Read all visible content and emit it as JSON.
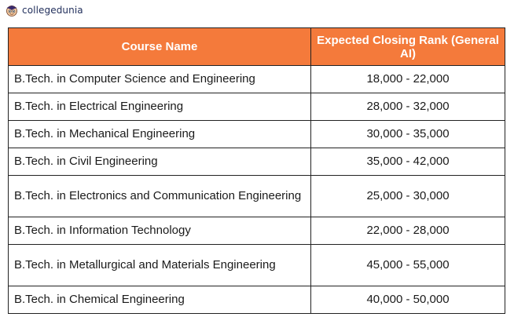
{
  "brand": {
    "name": "collegedunia",
    "logo_icon": "mascot-logo-icon"
  },
  "table": {
    "headers": [
      "Course Name",
      "Expected Closing Rank (General AI)"
    ],
    "header_color": "#f47a3b",
    "rows": [
      {
        "course": "B.Tech. in Computer Science and Engineering",
        "rank": "18,000 - 22,000"
      },
      {
        "course": "B.Tech. in Electrical Engineering",
        "rank": "28,000 - 32,000"
      },
      {
        "course": "B.Tech. in Mechanical Engineering",
        "rank": "30,000 - 35,000"
      },
      {
        "course": "B.Tech. in Civil Engineering",
        "rank": "35,000 - 42,000"
      },
      {
        "course": "B.Tech. in Electronics and Communication Engineering",
        "rank": "25,000 - 30,000"
      },
      {
        "course": "B.Tech. in Information Technology",
        "rank": "22,000 - 28,000"
      },
      {
        "course": "B.Tech. in Metallurgical and Materials Engineering",
        "rank": "45,000 - 55,000"
      },
      {
        "course": "B.Tech. in Chemical Engineering",
        "rank": "40,000 - 50,000"
      }
    ]
  }
}
